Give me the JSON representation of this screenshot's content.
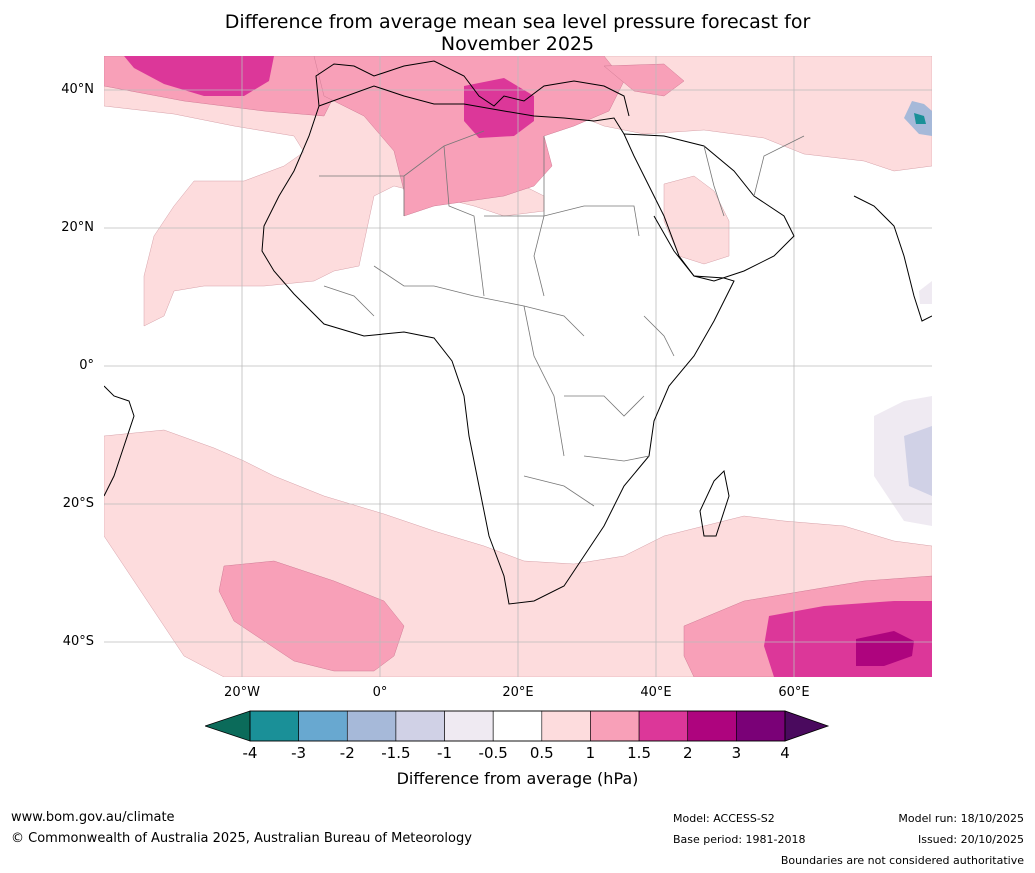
{
  "title": {
    "line1": "Difference from average mean sea level pressure forecast for",
    "line2": "November 2025"
  },
  "axes": {
    "lat_labels": [
      "40°N",
      "20°N",
      "0°",
      "20°S",
      "40°S"
    ],
    "lon_labels": [
      "20°W",
      "0°",
      "20°E",
      "40°E",
      "60°E"
    ]
  },
  "colorbar": {
    "label": "Difference from average (hPa)",
    "ticks": [
      "-4",
      "-3",
      "-2",
      "-1.5",
      "-1",
      "-0.5",
      "0.5",
      "1",
      "1.5",
      "2",
      "3",
      "4"
    ],
    "under_color": "#0b6b5a",
    "over_color": "#4a0a5e",
    "bin_colors": [
      "#1a9098",
      "#68a8d0",
      "#a6b9d9",
      "#d0d1e6",
      "#efeaf2",
      "#ffffff",
      "#fddcdd",
      "#f8a0b8",
      "#dc3799",
      "#ae047e",
      "#7a0177"
    ]
  },
  "footer": {
    "website": "www.bom.gov.au/climate",
    "copyright": "© Commonwealth of Australia 2025, Australian Bureau of Meteorology",
    "model": "Model: ACCESS-S2",
    "base_period": "Base period: 1981-2018",
    "model_run": "Model run: 18/10/2025",
    "issued": "Issued: 20/10/2025",
    "disclaimer": "Boundaries are not considered authoritative"
  }
}
